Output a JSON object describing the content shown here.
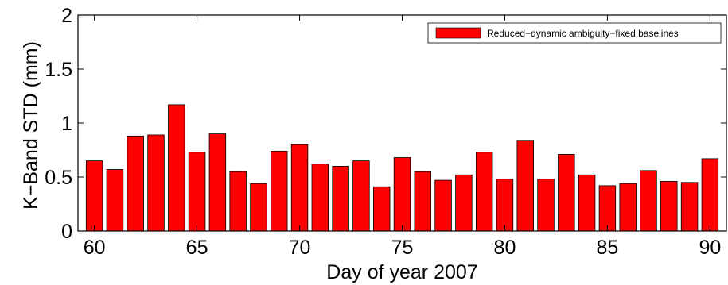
{
  "chart_data": {
    "type": "bar",
    "x": [
      60,
      61,
      62,
      63,
      64,
      65,
      66,
      67,
      68,
      69,
      70,
      71,
      72,
      73,
      74,
      75,
      76,
      77,
      78,
      79,
      80,
      81,
      82,
      83,
      84,
      85,
      86,
      87,
      88,
      89,
      90
    ],
    "series": [
      {
        "name": "Reduced−dynamic ambiguity−fixed baselines",
        "color": "#ff0000",
        "values": [
          0.65,
          0.57,
          0.88,
          0.89,
          1.17,
          0.73,
          0.9,
          0.55,
          0.44,
          0.74,
          0.8,
          0.62,
          0.6,
          0.65,
          0.41,
          0.68,
          0.55,
          0.47,
          0.52,
          0.73,
          0.48,
          0.84,
          0.48,
          0.71,
          0.52,
          0.42,
          0.44,
          0.56,
          0.46,
          0.45,
          0.67
        ]
      }
    ],
    "xlabel": "Day of year 2007",
    "ylabel": "K−Band STD (mm)",
    "xlim": [
      59.2,
      90.8
    ],
    "ylim": [
      0,
      2
    ],
    "xticks": [
      60,
      65,
      70,
      75,
      80,
      85,
      90
    ],
    "yticks": [
      0,
      0.5,
      1,
      1.5,
      2
    ],
    "ytick_labels": [
      "0",
      "0.5",
      "1",
      "1.5",
      "2"
    ],
    "legend_position": "top-right",
    "grid": false,
    "bar_color": "#ff0000",
    "edge_color": "#000000"
  }
}
